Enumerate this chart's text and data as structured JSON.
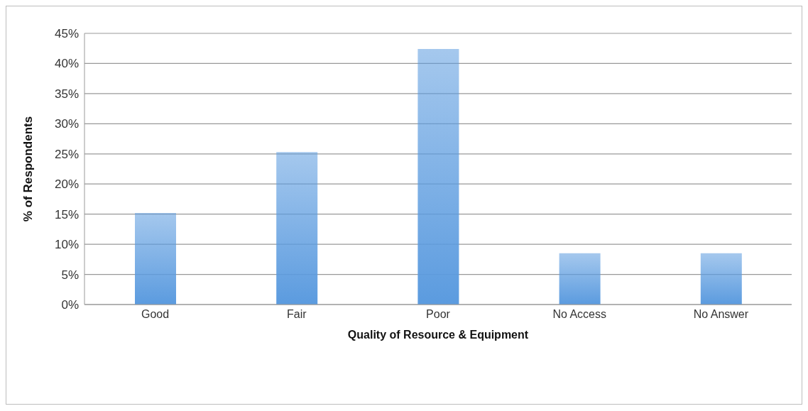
{
  "chart_data": {
    "type": "bar",
    "xlabel": "Quality of Resource & Equipment",
    "ylabel": "% of Respondents",
    "categories": [
      "Good",
      "Fair",
      "Poor",
      "No Access",
      "No Answer"
    ],
    "values": [
      15.2,
      25.3,
      42.4,
      8.5,
      8.5
    ],
    "color": "#5b9bdf",
    "ylim": [
      0,
      45
    ],
    "yticks": [
      {
        "value": 0,
        "label": "0%"
      },
      {
        "value": 5,
        "label": "5%"
      },
      {
        "value": 10,
        "label": "10%"
      },
      {
        "value": 15,
        "label": "15%"
      },
      {
        "value": 20,
        "label": "20%"
      },
      {
        "value": 25,
        "label": "25%"
      },
      {
        "value": 30,
        "label": "30%"
      },
      {
        "value": 35,
        "label": "35%"
      },
      {
        "value": 40,
        "label": "40%"
      },
      {
        "value": 45,
        "label": "45%"
      }
    ],
    "grid": "y"
  }
}
